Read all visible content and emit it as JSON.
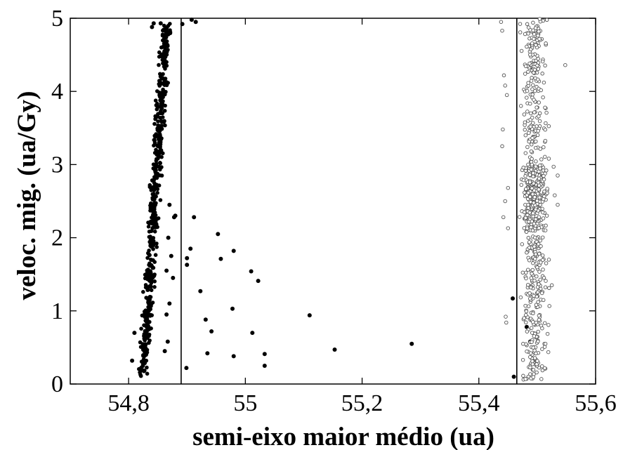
{
  "chart_data": {
    "type": "scatter",
    "title": "",
    "xlabel": "semi-eixo maior médio (ua)",
    "ylabel": "veloc. mig. (ua/Gy)",
    "xlim": [
      54.7,
      55.6
    ],
    "ylim": [
      0,
      5
    ],
    "grid": false,
    "x_ticks": [
      "54,8",
      "55",
      "55,2",
      "55,4",
      "55,6"
    ],
    "x_tick_values": [
      54.8,
      55.0,
      55.2,
      55.4,
      55.6
    ],
    "y_ticks": [
      "0",
      "1",
      "2",
      "3",
      "4",
      "5"
    ],
    "y_tick_values": [
      0,
      1,
      2,
      3,
      4,
      5
    ],
    "vertical_lines": [
      54.89,
      55.465
    ],
    "series": [
      {
        "marker": "filled-circle",
        "color": "#000000",
        "band": {
          "y_start": 0.1,
          "y_end": 4.95,
          "x_start": 54.825,
          "x_end": 54.865,
          "jitter": 0.012,
          "count": 520
        },
        "points": [
          [
            54.806,
            0.32
          ],
          [
            54.81,
            0.7
          ],
          [
            54.867,
            0.58
          ],
          [
            54.862,
            0.45
          ],
          [
            54.87,
            1.1
          ],
          [
            54.865,
            1.55
          ],
          [
            54.873,
            1.75
          ],
          [
            54.868,
            2.0
          ],
          [
            54.878,
            2.28
          ],
          [
            54.88,
            2.3
          ],
          [
            54.87,
            2.45
          ],
          [
            54.876,
            1.45
          ],
          [
            54.865,
            0.95
          ],
          [
            54.892,
            4.92
          ],
          [
            54.908,
            4.98
          ],
          [
            54.915,
            4.95
          ],
          [
            54.855,
            4.93
          ],
          [
            54.84,
            4.88
          ],
          [
            54.843,
            4.93
          ],
          [
            54.9,
            1.72
          ],
          [
            54.9,
            1.63
          ],
          [
            54.906,
            1.85
          ],
          [
            54.912,
            2.28
          ],
          [
            54.899,
            0.22
          ],
          [
            54.923,
            1.27
          ],
          [
            54.932,
            0.88
          ],
          [
            54.942,
            0.72
          ],
          [
            54.935,
            0.42
          ],
          [
            54.953,
            2.05
          ],
          [
            54.958,
            1.71
          ],
          [
            54.98,
            1.82
          ],
          [
            54.978,
            1.03
          ],
          [
            54.98,
            0.38
          ],
          [
            55.01,
            1.54
          ],
          [
            55.022,
            1.41
          ],
          [
            55.012,
            0.7
          ],
          [
            55.033,
            0.41
          ],
          [
            55.033,
            0.25
          ],
          [
            55.11,
            0.94
          ],
          [
            55.153,
            0.47
          ],
          [
            55.285,
            0.55
          ],
          [
            55.458,
            1.17
          ],
          [
            55.46,
            0.1
          ],
          [
            55.482,
            0.78
          ],
          [
            55.488,
            0.58
          ],
          [
            55.497,
            0.82
          ],
          [
            55.49,
            0.28
          ]
        ]
      },
      {
        "marker": "open-circle",
        "color": "#555555",
        "band": {
          "y_start": 0.05,
          "y_end": 5.0,
          "x_center": 55.495,
          "spread": 0.03,
          "count": 700
        },
        "points": [
          [
            55.438,
            4.95
          ],
          [
            55.44,
            4.83
          ],
          [
            55.443,
            4.22
          ],
          [
            55.445,
            4.08
          ],
          [
            55.441,
            3.48
          ],
          [
            55.44,
            3.25
          ],
          [
            55.448,
            3.95
          ],
          [
            55.45,
            2.68
          ],
          [
            55.445,
            2.5
          ],
          [
            55.442,
            2.28
          ],
          [
            55.45,
            2.13
          ],
          [
            55.446,
            0.92
          ],
          [
            55.447,
            0.84
          ],
          [
            55.548,
            4.36
          ],
          [
            55.535,
            2.85
          ],
          [
            55.535,
            2.45
          ],
          [
            55.528,
            2.97
          ],
          [
            55.53,
            2.58
          ],
          [
            55.525,
            1.35
          ],
          [
            55.52,
            1.7
          ]
        ]
      }
    ]
  }
}
